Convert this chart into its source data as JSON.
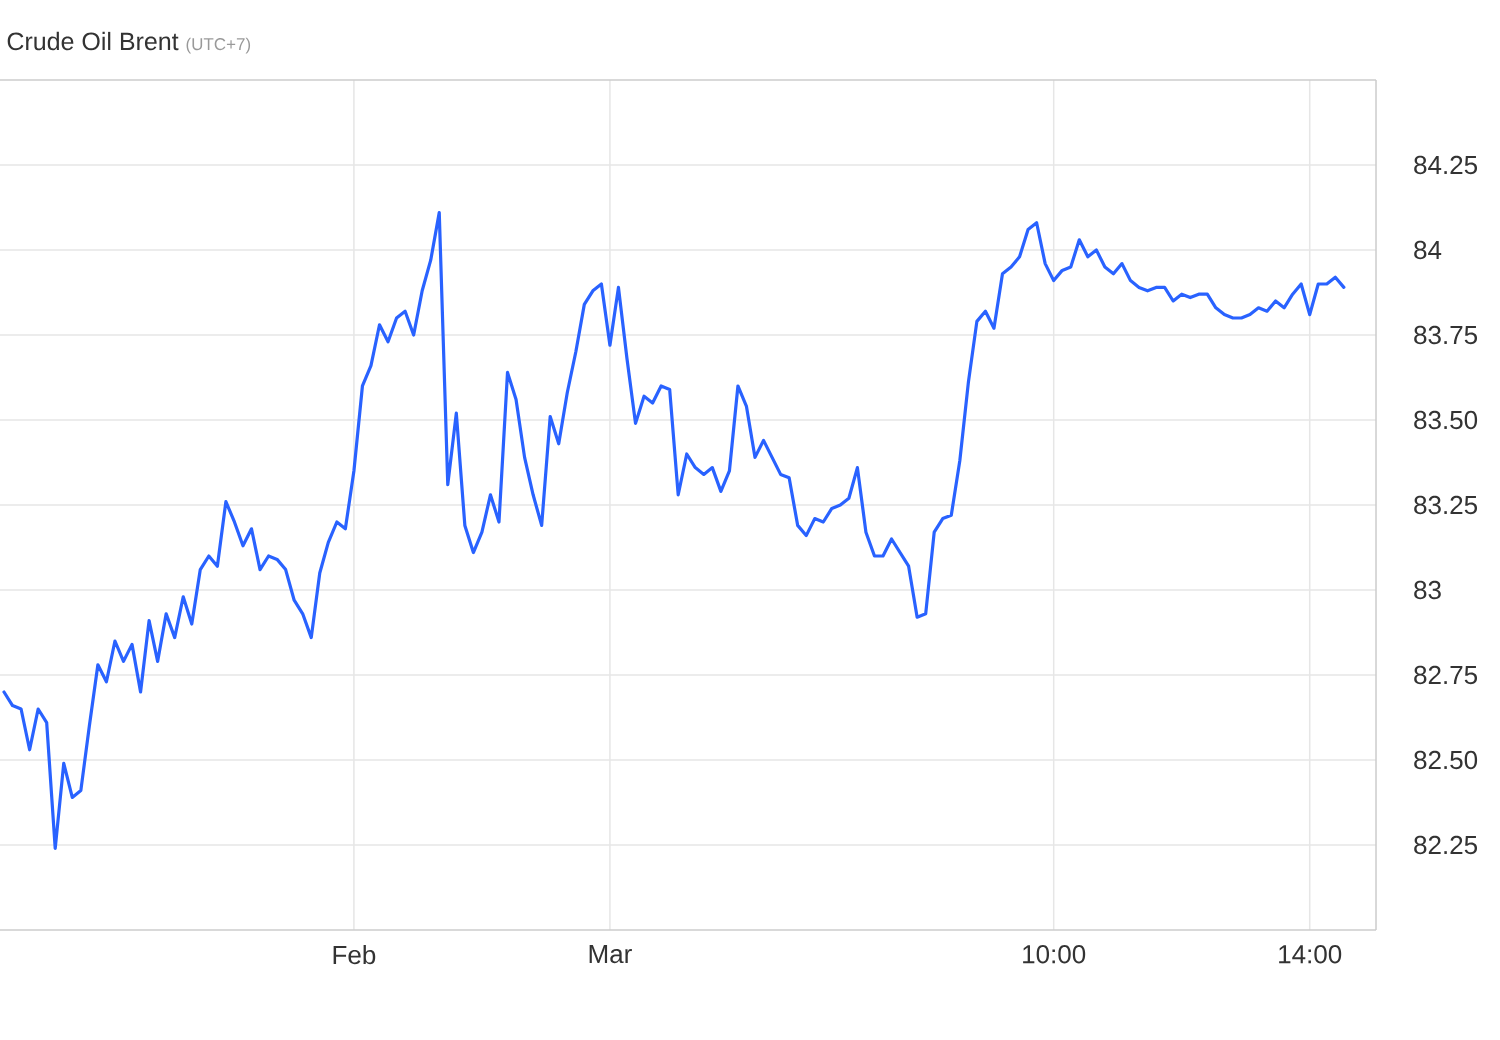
{
  "chart_data": {
    "type": "line",
    "title": "Crude Oil Brent",
    "subtitle": "(UTC+7)",
    "categories": [
      null,
      null,
      null,
      null,
      null,
      null,
      null,
      null,
      null,
      null,
      null,
      null,
      null,
      null,
      null,
      null,
      null,
      null,
      null,
      null,
      null,
      null,
      null,
      null,
      null,
      null,
      null,
      null,
      null,
      null,
      null,
      null,
      null,
      null,
      null,
      null,
      null,
      null,
      null,
      null,
      null,
      "Feb",
      null,
      null,
      null,
      null,
      null,
      null,
      null,
      null,
      null,
      null,
      null,
      null,
      null,
      null,
      null,
      null,
      null,
      null,
      null,
      null,
      null,
      null,
      null,
      null,
      null,
      null,
      null,
      null,
      null,
      "Mar",
      null,
      null,
      null,
      null,
      null,
      null,
      null,
      null,
      null,
      null,
      null,
      null,
      null,
      null,
      null,
      null,
      null,
      null,
      null,
      null,
      null,
      null,
      null,
      null,
      null,
      null,
      null,
      null,
      null,
      null,
      null,
      null,
      null,
      null,
      null,
      null,
      null,
      null,
      null,
      null,
      null,
      null,
      null,
      null,
      null,
      null,
      null,
      null,
      null,
      null,
      null,
      "10:00",
      null,
      null,
      null,
      null,
      null,
      null,
      null,
      null,
      null,
      null,
      null,
      null,
      null,
      null,
      null,
      null,
      null,
      null,
      null,
      null,
      null,
      null,
      null,
      null,
      null,
      null,
      null,
      null,
      null,
      "14:00",
      null,
      null,
      null,
      null
    ],
    "values": [
      82.7,
      82.66,
      82.65,
      82.53,
      82.65,
      82.61,
      82.24,
      82.49,
      82.39,
      82.41,
      82.6,
      82.78,
      82.73,
      82.85,
      82.79,
      82.84,
      82.7,
      82.91,
      82.79,
      82.93,
      82.86,
      82.98,
      82.9,
      83.06,
      83.1,
      83.07,
      83.26,
      83.2,
      83.13,
      83.18,
      83.06,
      83.1,
      83.09,
      83.06,
      82.97,
      82.93,
      82.86,
      83.05,
      83.14,
      83.2,
      83.18,
      83.35,
      83.6,
      83.66,
      83.78,
      83.73,
      83.8,
      83.82,
      83.75,
      83.88,
      83.97,
      84.11,
      83.31,
      83.52,
      83.19,
      83.11,
      83.17,
      83.28,
      83.2,
      83.64,
      83.56,
      83.39,
      83.28,
      83.19,
      83.51,
      83.43,
      83.58,
      83.7,
      83.84,
      83.88,
      83.9,
      83.72,
      83.89,
      83.68,
      83.49,
      83.57,
      83.55,
      83.6,
      83.59,
      83.28,
      83.4,
      83.36,
      83.34,
      83.36,
      83.29,
      83.35,
      83.6,
      83.54,
      83.39,
      83.44,
      83.39,
      83.34,
      83.33,
      83.19,
      83.16,
      83.21,
      83.2,
      83.24,
      83.25,
      83.27,
      83.36,
      83.17,
      83.1,
      83.1,
      83.15,
      83.11,
      83.07,
      82.92,
      82.93,
      83.17,
      83.21,
      83.22,
      83.38,
      83.61,
      83.79,
      83.82,
      83.77,
      83.93,
      83.95,
      83.98,
      84.06,
      84.08,
      83.96,
      83.91,
      83.94,
      83.95,
      84.03,
      83.98,
      84.0,
      83.95,
      83.93,
      83.96,
      83.91,
      83.89,
      83.88,
      83.89,
      83.89,
      83.85,
      83.87,
      83.86,
      83.87,
      83.87,
      83.83,
      83.81,
      83.8,
      83.8,
      83.81,
      83.83,
      83.82,
      83.85,
      83.83,
      83.87,
      83.9,
      83.81,
      83.9,
      83.9,
      83.92,
      83.89
    ],
    "color": "#2962ff",
    "ylim": [
      82,
      84.5
    ],
    "yticks": [
      82.25,
      {
        "value": 82.5,
        "label": "82.50"
      },
      82.75,
      83,
      83.25,
      {
        "value": 83.5,
        "label": "83.50"
      },
      83.75,
      84,
      84.25
    ],
    "grid": true,
    "marker": "none",
    "line_style": "solid"
  }
}
